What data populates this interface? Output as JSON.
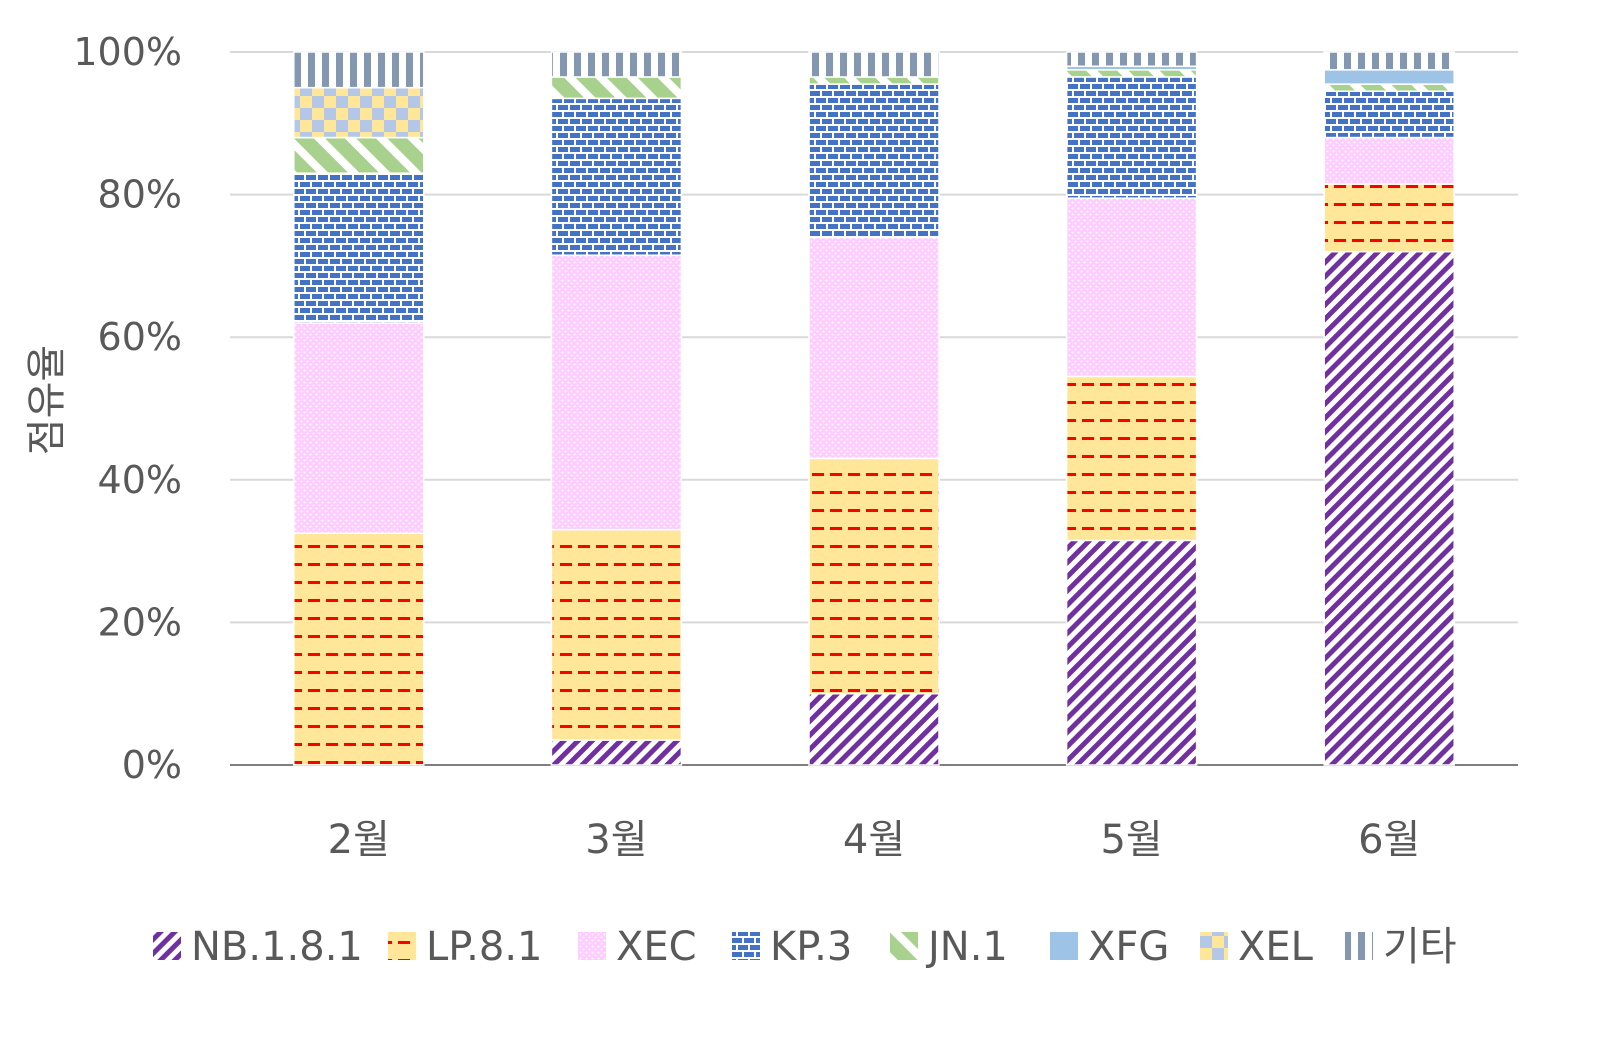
{
  "chart_data": {
    "type": "bar",
    "stacked": true,
    "percent": true,
    "categories": [
      "2월",
      "3월",
      "4월",
      "5월",
      "6월"
    ],
    "ylabel": "점유율",
    "xlabel": "",
    "ylim": [
      0,
      100
    ],
    "yticks": [
      "0%",
      "20%",
      "40%",
      "60%",
      "80%",
      "100%"
    ],
    "grid": true,
    "legend_position": "bottom",
    "series": [
      {
        "name": "NB.1.8.1",
        "color": "#7030A0",
        "pattern": "diagonal-stripes",
        "values": [
          0,
          3.5,
          10,
          31.5,
          72
        ]
      },
      {
        "name": "LP.8.1",
        "color": "#FFE699",
        "pattern": "red-dashes",
        "values": [
          32.5,
          29.5,
          33,
          23,
          9.5
        ]
      },
      {
        "name": "XEC",
        "color": "#FFCCFF",
        "pattern": "dots",
        "values": [
          29.5,
          38.5,
          31,
          25,
          6.5
        ]
      },
      {
        "name": "KP.3",
        "color": "#4472C4",
        "pattern": "bricks",
        "values": [
          21,
          22,
          21.5,
          17,
          6.5
        ]
      },
      {
        "name": "JN.1",
        "color": "#A9D18E",
        "pattern": "wide-diagonal",
        "values": [
          5,
          3,
          1,
          1,
          1
        ]
      },
      {
        "name": "XFG",
        "color": "#9DC3E6",
        "pattern": "solid",
        "values": [
          0,
          0,
          0,
          0.5,
          2
        ]
      },
      {
        "name": "XEL",
        "color": "#FFE699",
        "pattern": "checker",
        "values": [
          7,
          0,
          0,
          0,
          0
        ]
      },
      {
        "name": "기타",
        "color": "#8497B0",
        "pattern": "vertical-stripes",
        "values": [
          5,
          3.5,
          3.5,
          2,
          2.5
        ]
      }
    ]
  }
}
